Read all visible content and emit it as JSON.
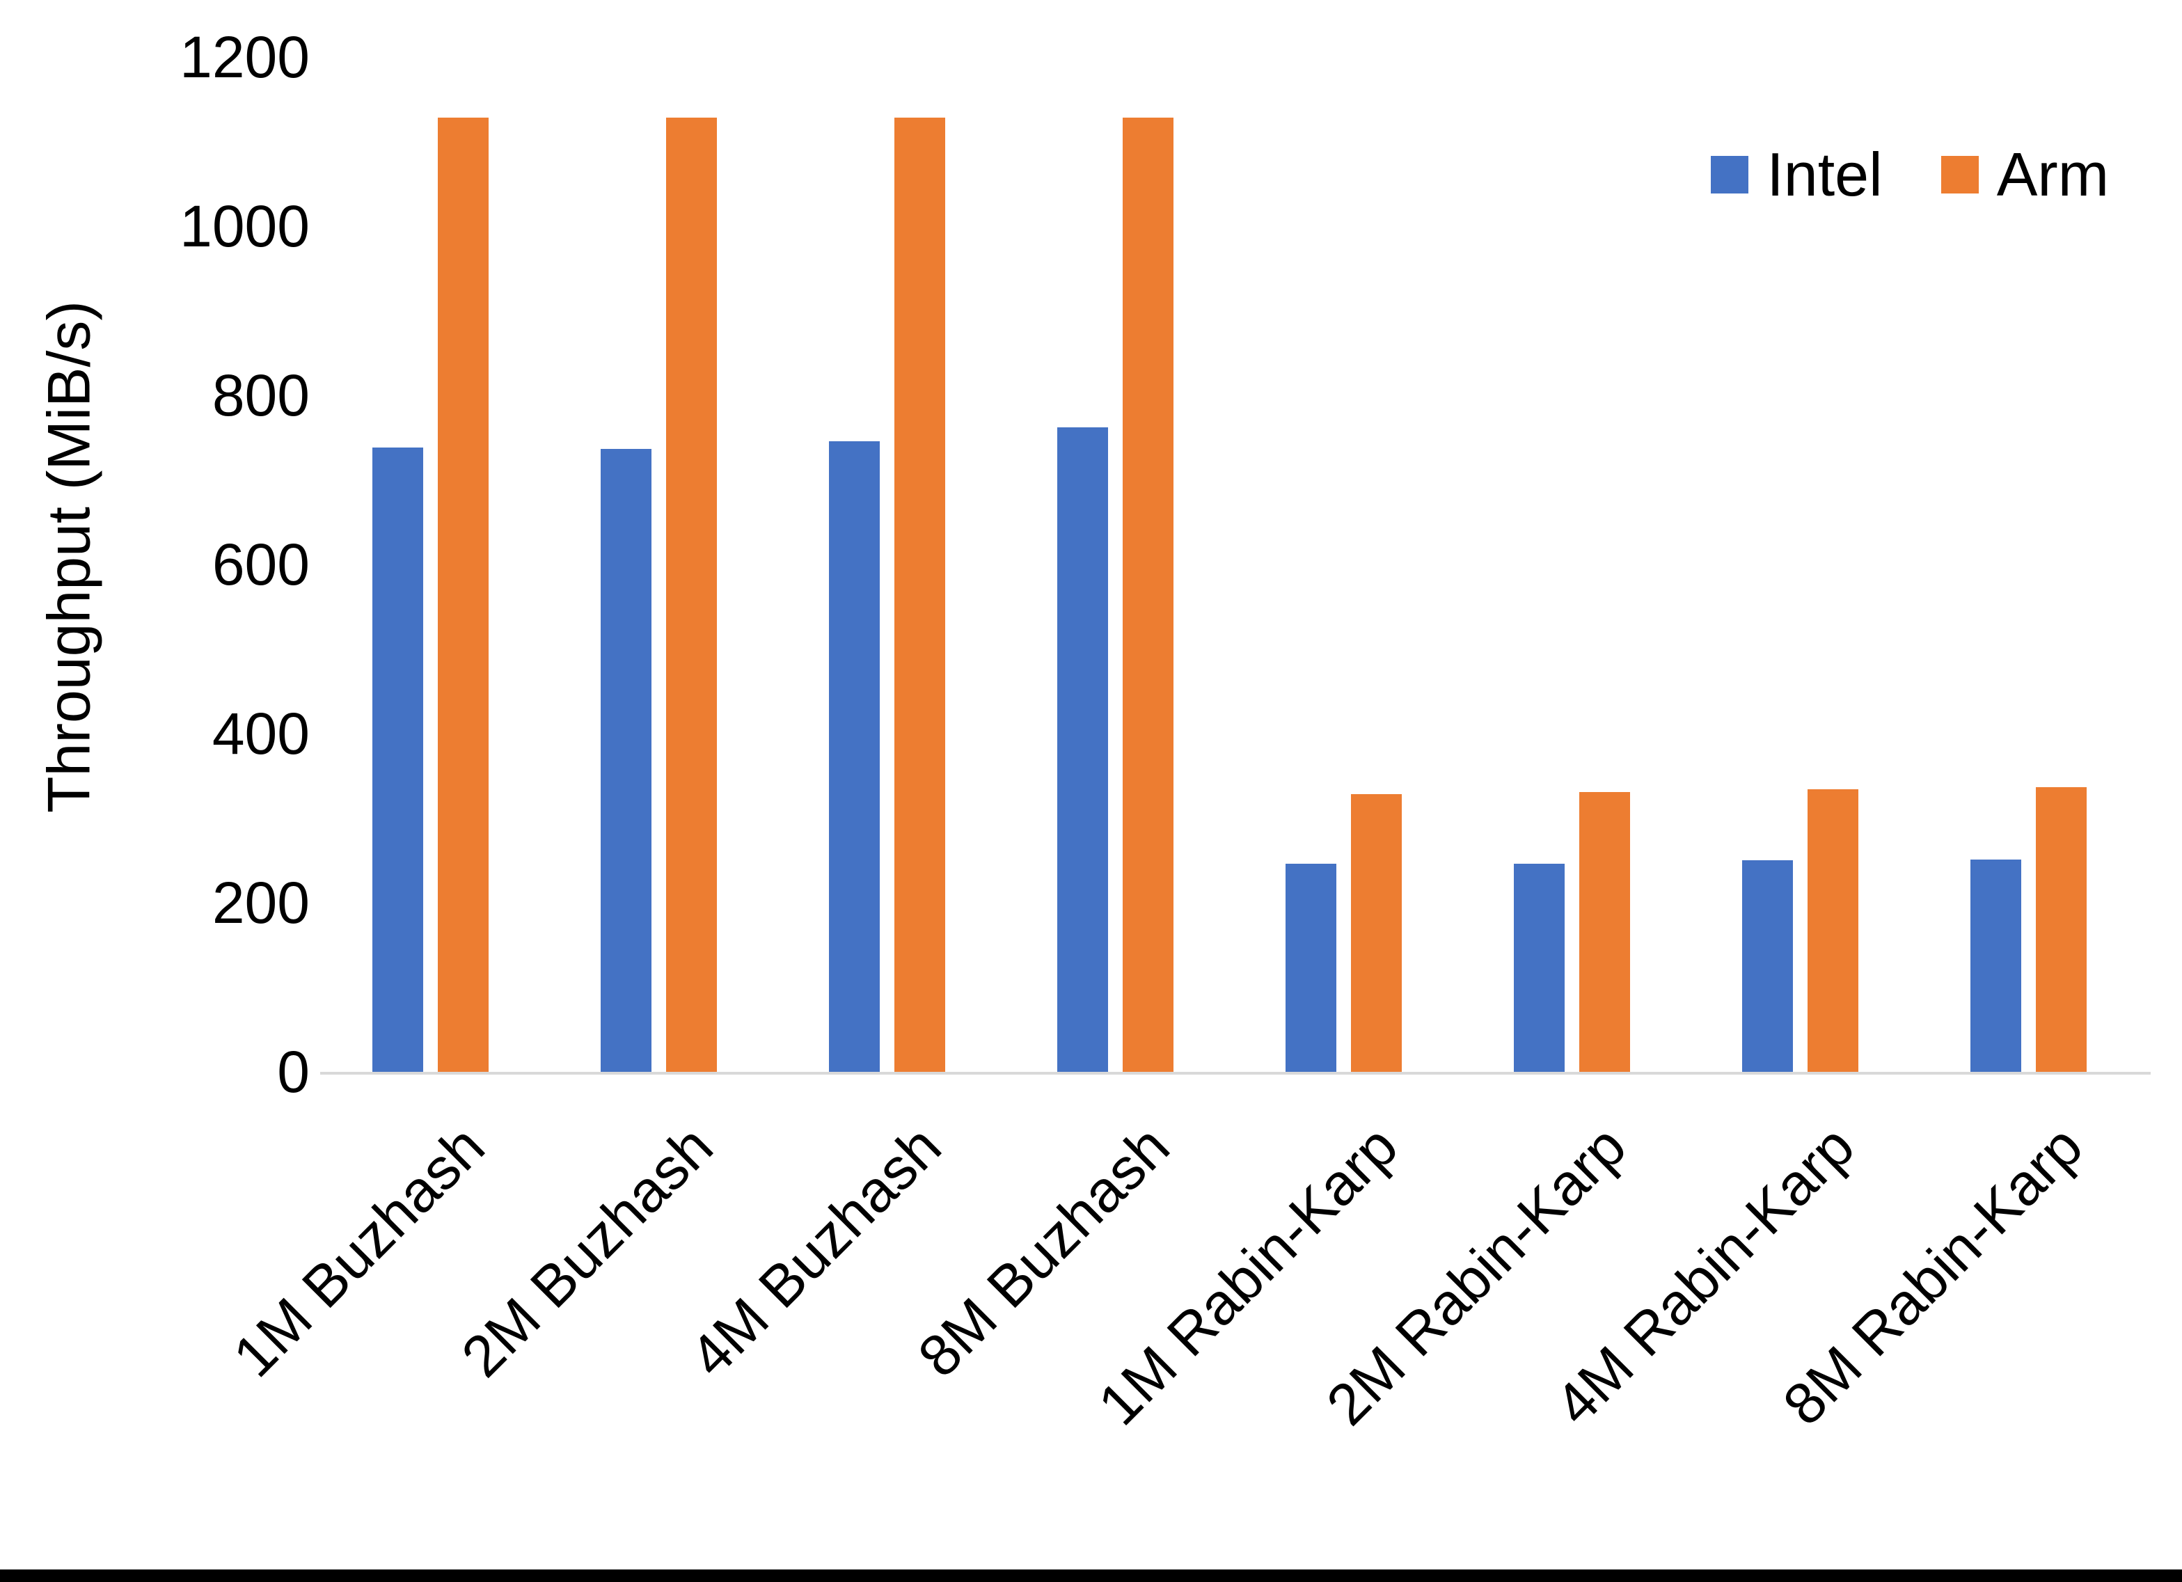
{
  "chart_data": {
    "type": "bar",
    "title": "",
    "ylabel": "Throughput (MiB/s)",
    "xlabel": "",
    "ylim": [
      0,
      1200
    ],
    "yticks": [
      0,
      200,
      400,
      600,
      800,
      1000,
      1200
    ],
    "grid": false,
    "legend_position": "top-right",
    "categories": [
      "1M Buzhash",
      "2M Buzhash",
      "4M Buzhash",
      "8M Buzhash",
      "1M Rabin-Karp",
      "2M Rabin-Karp",
      "4M Rabin-Karp",
      "8M Rabin-Karp"
    ],
    "series": [
      {
        "name": "Intel",
        "color": "#4472C4",
        "values": [
          738,
          737,
          746,
          762,
          246,
          246,
          250,
          251
        ]
      },
      {
        "name": "Arm",
        "color": "#ED7D31",
        "values": [
          1128,
          1128,
          1128,
          1128,
          328,
          331,
          334,
          337
        ]
      }
    ]
  },
  "colors": {
    "axis_line": "#D9D9D9",
    "text": "#000000",
    "background": "#FFFFFF",
    "bottom_border": "#000000"
  }
}
